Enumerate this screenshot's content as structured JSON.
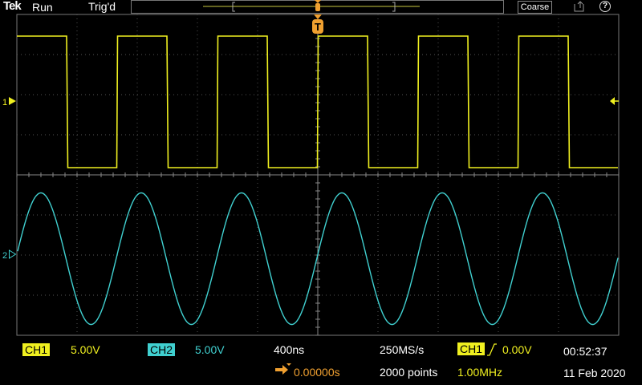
{
  "header": {
    "brand": "Tek",
    "acq_state": "Run",
    "trigger_state": "Trig'd",
    "coarse_label": "Coarse"
  },
  "channels": {
    "ch1": {
      "label": "CH1",
      "scale": "5.00V",
      "color": "#f0f020",
      "marker": "1"
    },
    "ch2": {
      "label": "CH2",
      "scale": "5.00V",
      "color": "#40d0d0",
      "marker": "2"
    }
  },
  "horizontal": {
    "timebase": "400ns",
    "position": "0.00000s",
    "sample_rate": "250MS/s",
    "record_length": "2000 points"
  },
  "trigger": {
    "source": "CH1",
    "slope": "rising",
    "level": "0.00V",
    "frequency": "1.00MHz",
    "marker": "T",
    "color": "#f0a030"
  },
  "clock": {
    "time": "00:52:37",
    "date": "11 Feb 2020"
  },
  "icons": [
    "help-icon",
    "export-icon",
    "trigger-marker-icon",
    "horizontal-position-arrow-icon",
    "rising-edge-icon"
  ]
}
